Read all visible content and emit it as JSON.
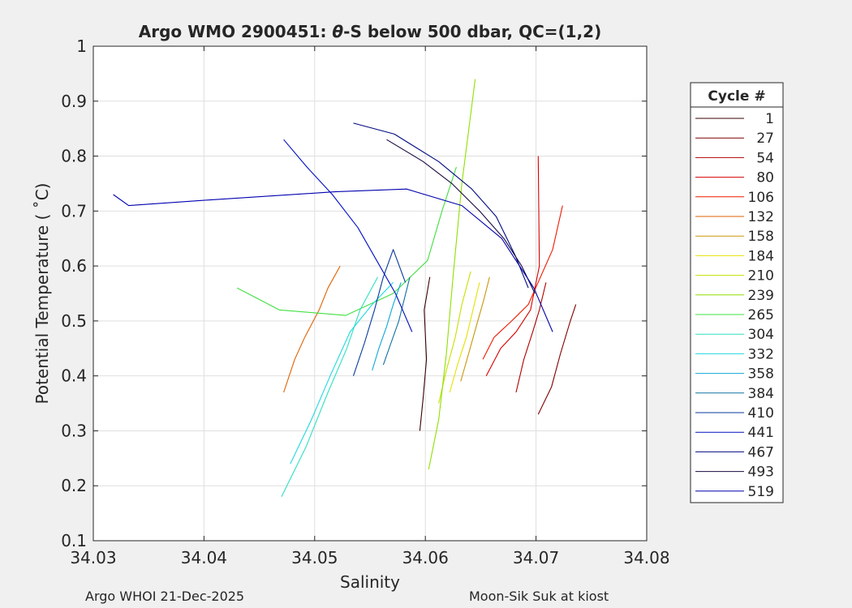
{
  "chart_data": {
    "type": "line",
    "title_parts": {
      "prefix": "Argo WMO 2900451: ",
      "theta": "θ",
      "suffix": "-S below 500 dbar,  QC=(1,2)"
    },
    "xlabel": "Salinity",
    "ylabel": "Potential Temperature ( ˚C)",
    "xlim": [
      34.03,
      34.08
    ],
    "ylim": [
      0.1,
      1.0
    ],
    "xticks": [
      "34.03",
      "34.04",
      "34.05",
      "34.06",
      "34.07",
      "34.08"
    ],
    "yticks": [
      "0.1",
      "0.2",
      "0.3",
      "0.4",
      "0.5",
      "0.6",
      "0.7",
      "0.8",
      "0.9",
      "1"
    ],
    "grid": true,
    "legend": {
      "title": "Cycle #",
      "position": "outside-right",
      "entries": [
        {
          "label": "1",
          "color": "#3a0000"
        },
        {
          "label": "27",
          "color": "#800000"
        },
        {
          "label": "54",
          "color": "#b00000"
        },
        {
          "label": "80",
          "color": "#d60000"
        },
        {
          "label": "106",
          "color": "#ee1a00"
        },
        {
          "label": "132",
          "color": "#e06000"
        },
        {
          "label": "158",
          "color": "#c8960a"
        },
        {
          "label": "184",
          "color": "#e8e000"
        },
        {
          "label": "210",
          "color": "#c8e000"
        },
        {
          "label": "239",
          "color": "#8ee000"
        },
        {
          "label": "265",
          "color": "#40e040"
        },
        {
          "label": "304",
          "color": "#30e0c0"
        },
        {
          "label": "332",
          "color": "#20d8e0"
        },
        {
          "label": "358",
          "color": "#10a8d8"
        },
        {
          "label": "384",
          "color": "#1070a0"
        },
        {
          "label": "410",
          "color": "#0a3a9a"
        },
        {
          "label": "441",
          "color": "#0010c0"
        },
        {
          "label": "467",
          "color": "#000a80"
        },
        {
          "label": "493",
          "color": "#1a0a40"
        },
        {
          "label": "519",
          "color": "#0000b0"
        }
      ]
    },
    "series": [
      {
        "group": "1",
        "x": [
          34.0595,
          34.0598,
          34.0601,
          34.0599,
          34.0604
        ],
        "y": [
          0.3,
          0.36,
          0.43,
          0.52,
          0.58
        ]
      },
      {
        "group": "27",
        "x": [
          34.0702,
          34.0714,
          34.0722,
          34.0728,
          34.0731,
          34.0736
        ],
        "y": [
          0.33,
          0.38,
          0.44,
          0.48,
          0.5,
          0.53
        ]
      },
      {
        "group": "54",
        "x": [
          34.0682,
          34.0689,
          34.0697,
          34.0703,
          34.0709
        ],
        "y": [
          0.37,
          0.43,
          0.48,
          0.52,
          0.57
        ]
      },
      {
        "group": "80",
        "x": [
          34.0655,
          34.0668,
          34.0682,
          34.0695,
          34.0703,
          34.0702
        ],
        "y": [
          0.4,
          0.45,
          0.48,
          0.52,
          0.6,
          0.8
        ]
      },
      {
        "group": "106",
        "x": [
          34.0652,
          34.0662,
          34.0678,
          34.0693,
          34.0715,
          34.0724
        ],
        "y": [
          0.43,
          0.47,
          0.5,
          0.53,
          0.63,
          0.71
        ]
      },
      {
        "group": "132",
        "x": [
          34.0472,
          34.0482,
          34.0491,
          34.0504,
          34.0512,
          34.0523
        ],
        "y": [
          0.37,
          0.43,
          0.47,
          0.52,
          0.56,
          0.6
        ]
      },
      {
        "group": "158",
        "x": [
          34.0632,
          34.0639,
          34.0646,
          34.0653,
          34.0658
        ],
        "y": [
          0.39,
          0.44,
          0.49,
          0.54,
          0.58
        ]
      },
      {
        "group": "184",
        "x": [
          34.0622,
          34.0629,
          34.0637,
          34.0643,
          34.0649
        ],
        "y": [
          0.37,
          0.42,
          0.47,
          0.52,
          0.57
        ]
      },
      {
        "group": "210",
        "x": [
          34.0612,
          34.0619,
          34.0627,
          34.0633,
          34.0641
        ],
        "y": [
          0.35,
          0.41,
          0.47,
          0.53,
          0.59
        ]
      },
      {
        "group": "239",
        "x": [
          34.0603,
          34.0612,
          34.0619,
          34.0625,
          34.0633,
          34.0645
        ],
        "y": [
          0.23,
          0.32,
          0.44,
          0.58,
          0.75,
          0.94
        ]
      },
      {
        "group": "265",
        "x": [
          34.043,
          34.0468,
          34.0528,
          34.0571,
          34.0602,
          34.0615,
          34.0628
        ],
        "y": [
          0.56,
          0.52,
          0.51,
          0.55,
          0.61,
          0.7,
          0.78
        ]
      },
      {
        "group": "304",
        "x": [
          34.047,
          34.0492,
          34.0512,
          34.0529,
          34.0541,
          34.0557
        ],
        "y": [
          0.18,
          0.27,
          0.37,
          0.45,
          0.52,
          0.58
        ]
      },
      {
        "group": "332",
        "x": [
          34.0478,
          34.0497,
          34.0514,
          34.0532,
          34.0552,
          34.0571
        ],
        "y": [
          0.24,
          0.32,
          0.4,
          0.48,
          0.53,
          0.57
        ]
      },
      {
        "group": "358",
        "x": [
          34.0552,
          34.0558,
          34.0565,
          34.0571,
          34.0578
        ],
        "y": [
          0.41,
          0.45,
          0.49,
          0.53,
          0.57
        ]
      },
      {
        "group": "384",
        "x": [
          34.0562,
          34.0569,
          34.0576,
          34.0581,
          34.0586
        ],
        "y": [
          0.42,
          0.46,
          0.5,
          0.54,
          0.58
        ]
      },
      {
        "group": "410",
        "x": [
          34.0535,
          34.0545,
          34.0554,
          34.0562,
          34.0571,
          34.0582
        ],
        "y": [
          0.4,
          0.46,
          0.52,
          0.58,
          0.63,
          0.57
        ]
      },
      {
        "group": "441",
        "x": [
          34.0472,
          34.0493,
          34.0516,
          34.0539,
          34.0556,
          34.0573,
          34.0588
        ],
        "y": [
          0.83,
          0.78,
          0.73,
          0.67,
          0.61,
          0.55,
          0.48
        ]
      },
      {
        "group": "467",
        "x": [
          34.0535,
          34.0572,
          34.0612,
          34.0642,
          34.0664,
          34.0681,
          34.0693
        ],
        "y": [
          0.86,
          0.84,
          0.79,
          0.74,
          0.69,
          0.62,
          0.56
        ]
      },
      {
        "group": "493",
        "x": [
          34.0565,
          34.0598,
          34.0624,
          34.0649,
          34.0671,
          34.0687,
          34.0699
        ],
        "y": [
          0.83,
          0.79,
          0.75,
          0.7,
          0.65,
          0.6,
          0.55
        ]
      },
      {
        "group": "519",
        "x": [
          34.0318,
          34.0332,
          34.0403,
          34.0518,
          34.0583,
          34.0633,
          34.0669,
          34.0698,
          34.0715
        ],
        "y": [
          0.73,
          0.71,
          0.72,
          0.735,
          0.74,
          0.71,
          0.65,
          0.56,
          0.48
        ]
      }
    ]
  },
  "footer": {
    "left": "Argo WHOI 21-Dec-2025",
    "right": "Moon-Sik Suk at kiost"
  }
}
